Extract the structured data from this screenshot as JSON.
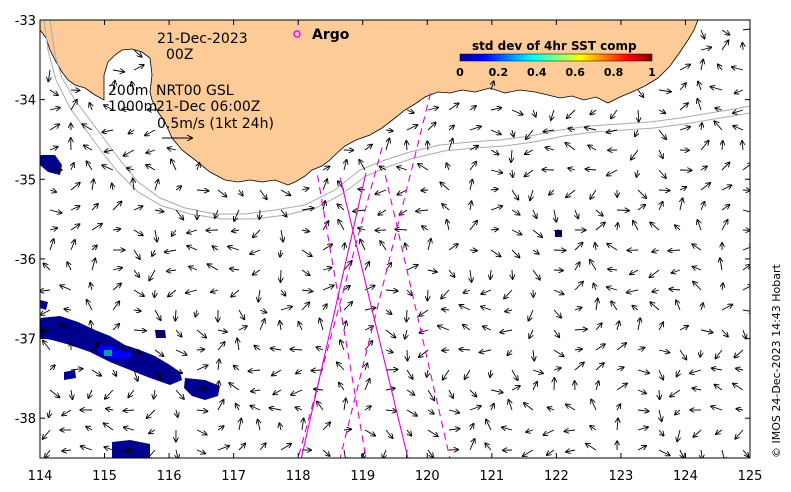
{
  "map": {
    "lon_range": [
      114,
      125
    ],
    "lat_range": [
      -38.5,
      -33
    ],
    "lon_ticks": [
      114,
      115,
      116,
      117,
      118,
      119,
      120,
      121,
      122,
      123,
      124,
      125
    ],
    "lat_ticks": [
      -33,
      -34,
      -35,
      -36,
      -37,
      -38
    ],
    "lon_tick_labels": [
      "114",
      "115",
      "116",
      "117",
      "118",
      "119",
      "120",
      "121",
      "122",
      "123",
      "124",
      "125"
    ],
    "lat_tick_labels": [
      "-33",
      "-34",
      "-35",
      "-36",
      "-37",
      "-38"
    ],
    "land_color": "#fdcb97",
    "ocean_color": "#ffffff"
  },
  "annotations": {
    "date": "21-Dec-2023",
    "time": "00Z",
    "depth_200": "200m",
    "product": "NRT00 GSL",
    "depth_1000": "1000m",
    "valid_time": "21-Dec 06:00Z",
    "scale_label": "0.5m/s (1kt 24h)"
  },
  "legend": {
    "argo_label": "Argo",
    "argo_color": "#ff00ff"
  },
  "colorbar": {
    "title": "std dev of 4hr SST comp",
    "ticks": [
      0,
      0.2,
      0.4,
      0.6,
      0.8,
      1
    ],
    "tick_labels": [
      "0",
      "0.2",
      "0.4",
      "0.6",
      "0.8",
      "1"
    ],
    "colors": [
      "#00008f",
      "#0000ff",
      "#0080ff",
      "#00ffff",
      "#80ff80",
      "#ffff00",
      "#ff8000",
      "#ff0000",
      "#800000"
    ]
  },
  "credit": "© IMOS 24-Dec-2023 14:43 Hobart",
  "altimeter_tracks": {
    "color": "#dd00dd",
    "solid": [
      {
        "from": [
          119.05,
          -34.92
        ],
        "to": [
          118.05,
          -38.5
        ]
      },
      {
        "from": [
          118.65,
          -34.98
        ],
        "to": [
          119.7,
          -38.5
        ]
      }
    ],
    "dashed": [
      {
        "from": [
          120.05,
          -33.92
        ],
        "to": [
          118.65,
          -38.5
        ]
      },
      {
        "from": [
          119.35,
          -34.95
        ],
        "to": [
          120.35,
          -38.5
        ]
      },
      {
        "from": [
          118.3,
          -34.95
        ],
        "to": [
          119.05,
          -38.5
        ]
      },
      {
        "from": [
          119.3,
          -34.6
        ],
        "to": [
          118.0,
          -38.5
        ]
      }
    ]
  }
}
